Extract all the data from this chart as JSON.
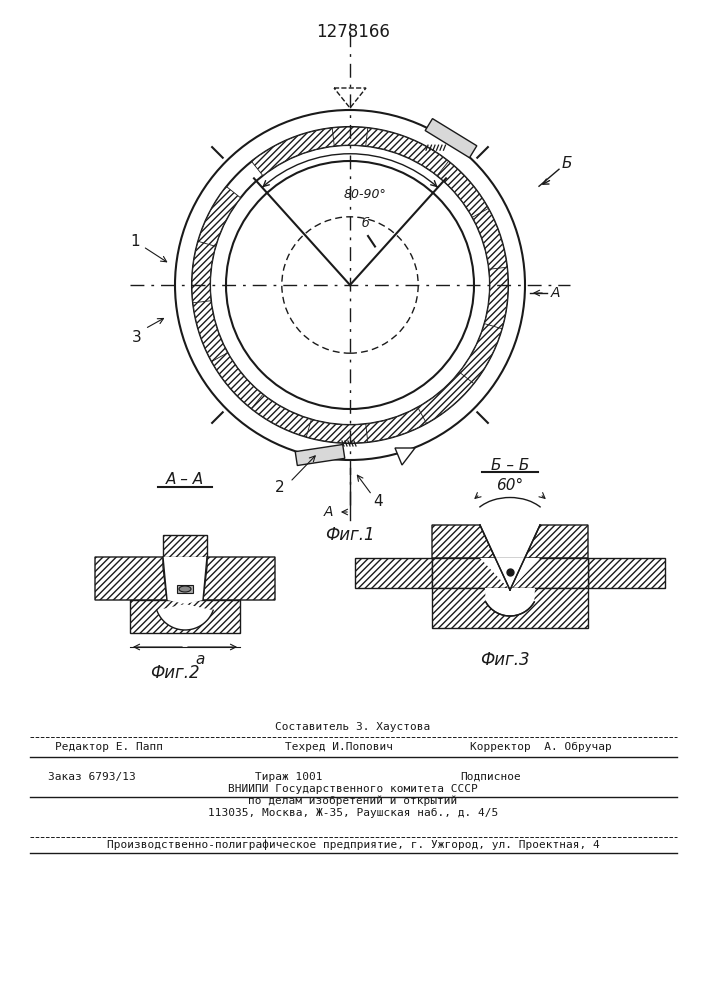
{
  "title": "1278166",
  "fig1_label": "Фиг.1",
  "fig2_label": "Фиг.2",
  "fig3_label": "Фиг.3",
  "section_aa": "А – А",
  "section_bb": "Б – Б",
  "angle_fig1": "80-90°",
  "angle_fig3": "60°",
  "label_b": "Б",
  "label_1": "1",
  "label_2": "2",
  "label_3": "3",
  "label_4": "4",
  "label_A": "А",
  "label_a_small": "а",
  "label_b_small": "б",
  "line_color": "#1a1a1a",
  "footer_line1": "Составитель З. Хаустова",
  "footer_ed": "Редактор Е. Папп",
  "footer_tech": "Техред И.Попович",
  "footer_corr": "Корректор  А. Обручар",
  "footer_order": "Заказ 6793/13",
  "footer_circ": "Тираж 1001",
  "footer_sub": "Подписное",
  "footer_org": "ВНИИПИ Государственного комитета СССР",
  "footer_dept": "по делам изобретений и открытий",
  "footer_addr": "113035, Москва, Ж-35, Раушская наб., д. 4/5",
  "footer_prod": "Производственно-полиграфическое предприятие, г. Ужгород, ул. Проектная, 4"
}
